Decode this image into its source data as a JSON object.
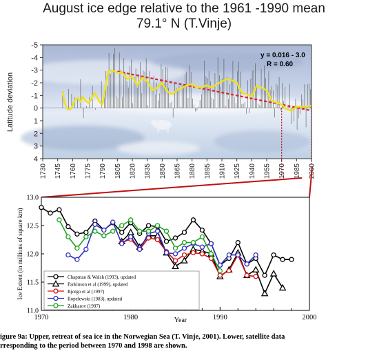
{
  "figure": {
    "title_line1": "August ice edge relative to the 1961 -1990 mean",
    "title_line2": "79.1° N (T.Vinje)",
    "caption_line1": "igure 9a: Upper, retreat of sea ice in the Norwegian Sea (T. Vinje, 2001). Lower, satellite data",
    "caption_line2": "rresponding to the period between 1970 and 1998 are shown."
  },
  "chart_data": [
    {
      "type": "line",
      "title": "August ice edge relative to the 1961 -1990 mean",
      "subtitle": "79.1° N (T.Vinje)",
      "xlabel": "",
      "ylabel": "Latitude deviation",
      "xlim": [
        1730,
        2000
      ],
      "ylim": [
        4,
        -5
      ],
      "y_inverted": true,
      "xticks": [
        1730,
        1745,
        1760,
        1775,
        1790,
        1805,
        1820,
        1835,
        1850,
        1865,
        1880,
        1895,
        1910,
        1925,
        1940,
        1955,
        1970,
        1985,
        2000
      ],
      "yticks": [
        -5,
        -4,
        -3,
        -2,
        -1,
        0,
        1,
        2,
        3,
        4
      ],
      "annotation_eq": "y = 0.016 - 3.0",
      "annotation_r": "R = 0.60",
      "colors": {
        "smooth": "#f0e020",
        "trend": "#e02020",
        "bars": "#444444"
      },
      "series": [
        {
          "name": "",
          "kind": "smoothed",
          "x": [
            1750,
            1752,
            1755,
            1758,
            1760,
            1762,
            1765,
            1768,
            1770,
            1773,
            1776,
            1779,
            1782,
            1785,
            1788,
            1790,
            1793,
            1796,
            1799,
            1802,
            1805,
            1810,
            1815,
            1820,
            1825,
            1830,
            1835,
            1840,
            1845,
            1850,
            1855,
            1860,
            1865,
            1870,
            1875,
            1880,
            1885,
            1890,
            1895,
            1900,
            1905,
            1910,
            1915,
            1920,
            1925,
            1930,
            1935,
            1940,
            1945,
            1950,
            1955,
            1960,
            1965,
            1970,
            1975,
            1980,
            1985,
            1990,
            1995,
            2000
          ],
          "y": [
            -1.3,
            -0.4,
            0.1,
            0.1,
            -0.2,
            -0.6,
            -0.8,
            -0.5,
            -0.9,
            -0.6,
            -0.4,
            -0.7,
            -1.2,
            -0.8,
            -0.4,
            -0.3,
            -1.6,
            -2.9,
            -3.0,
            -2.9,
            -2.8,
            -2.8,
            -2.3,
            -2.5,
            -1.8,
            -2.4,
            -2.1,
            -1.4,
            -1.6,
            -2.0,
            -1.3,
            -1.1,
            -1.4,
            -1.6,
            -1.8,
            -1.9,
            -1.6,
            -1.7,
            -1.8,
            -1.6,
            -1.9,
            -2.1,
            -2.3,
            -2.2,
            -2.0,
            -1.2,
            -1.1,
            -0.9,
            -1.8,
            -1.6,
            -1.4,
            -0.6,
            -0.4,
            -0.3,
            0.1,
            0.2,
            -0.1,
            -0.1,
            -0.1,
            -0.2
          ]
        },
        {
          "name": "",
          "kind": "trend",
          "x": [
            1805,
            2000
          ],
          "y": [
            -2.9,
            0.2
          ]
        }
      ]
    },
    {
      "type": "line",
      "title": "",
      "xlabel": "Year",
      "ylabel": "Ice Extent (in millions of square km)",
      "xlim": [
        1970,
        2000
      ],
      "ylim": [
        11.0,
        13.0
      ],
      "xticks": [
        1970,
        1980,
        1990,
        2000
      ],
      "yticks": [
        11.0,
        11.5,
        12.0,
        12.5,
        13.0
      ],
      "legend_position": "bottom-left",
      "series": [
        {
          "name": "Chapman & Walsh (1993), updated",
          "color": "#000000",
          "marker": "circle",
          "x": [
            1970,
            1971,
            1972,
            1973,
            1974,
            1975,
            1976,
            1977,
            1978,
            1979,
            1980,
            1981,
            1982,
            1983,
            1984,
            1985,
            1986,
            1987,
            1988,
            1989,
            1990,
            1991,
            1992,
            1993,
            1994,
            1995,
            1996,
            1997,
            1998
          ],
          "y": [
            12.82,
            12.72,
            12.78,
            12.48,
            12.35,
            12.38,
            12.58,
            12.42,
            12.55,
            12.38,
            12.55,
            12.36,
            12.5,
            12.48,
            12.22,
            12.28,
            12.38,
            12.6,
            12.42,
            12.18,
            11.8,
            11.92,
            12.2,
            11.82,
            11.92,
            11.62,
            11.98,
            11.9,
            11.9
          ]
        },
        {
          "name": "Parkinson et al (1999), updated",
          "color": "#000000",
          "marker": "triangle",
          "x": [
            1979,
            1980,
            1981,
            1982,
            1983,
            1984,
            1985,
            1986,
            1987,
            1988,
            1989,
            1990,
            1991,
            1992,
            1993,
            1994,
            1995,
            1996,
            1997
          ],
          "y": [
            12.22,
            12.38,
            12.12,
            12.32,
            12.32,
            12.02,
            11.78,
            11.88,
            12.08,
            12.05,
            12.0,
            11.6,
            11.72,
            12.02,
            11.62,
            11.72,
            11.3,
            11.65,
            11.4
          ]
        },
        {
          "name": "Bjorgo et al (1997)",
          "color": "#d01010",
          "marker": "circle",
          "x": [
            1979,
            1980,
            1981,
            1982,
            1983,
            1984,
            1985,
            1986,
            1987,
            1988,
            1989,
            1990,
            1991,
            1992,
            1993,
            1994
          ],
          "y": [
            12.2,
            12.26,
            12.08,
            12.28,
            12.25,
            12.04,
            11.88,
            11.98,
            12.02,
            12.0,
            11.92,
            11.62,
            11.7,
            11.98,
            11.62,
            11.6
          ]
        },
        {
          "name": "Ropelewski (1983), updated",
          "color": "#3030c0",
          "marker": "circle",
          "x": [
            1973,
            1974,
            1975,
            1976,
            1977,
            1978,
            1979,
            1980,
            1981,
            1982,
            1983,
            1984,
            1985,
            1986,
            1987,
            1988,
            1989,
            1990,
            1991,
            1992,
            1993,
            1994
          ],
          "y": [
            11.98,
            11.9,
            12.08,
            12.52,
            12.42,
            12.56,
            12.18,
            12.3,
            12.08,
            12.36,
            12.4,
            12.02,
            12.0,
            12.1,
            12.18,
            12.12,
            12.18,
            11.8,
            11.98,
            11.98,
            11.82,
            11.98
          ]
        },
        {
          "name": "Zakharov (1997)",
          "color": "#20a020",
          "marker": "circle",
          "x": [
            1972,
            1973,
            1974,
            1975,
            1976,
            1977,
            1978,
            1979,
            1980,
            1981,
            1982,
            1983,
            1984,
            1985,
            1986,
            1987,
            1988,
            1989,
            1990
          ],
          "y": [
            12.6,
            12.3,
            12.1,
            12.3,
            12.4,
            12.32,
            12.4,
            12.5,
            12.6,
            12.4,
            12.4,
            12.5,
            12.4,
            12.1,
            12.2,
            12.2,
            12.3,
            12.0,
            11.7
          ]
        }
      ]
    }
  ]
}
